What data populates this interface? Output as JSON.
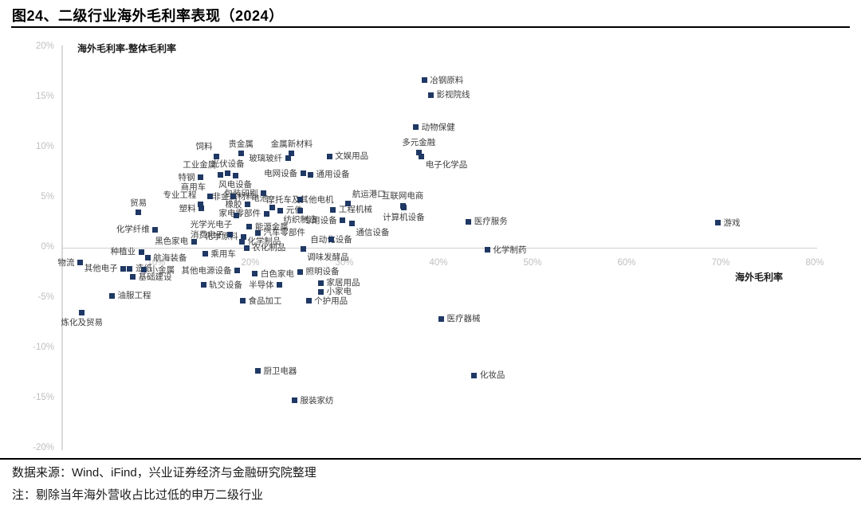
{
  "title": "图24、二级行业海外毛利率表现（2024）",
  "footer": {
    "source": "数据来源：Wind、iFind，兴业证券经济与金融研究院整理",
    "note": "注：剔除当年海外营收占比过低的申万二级行业"
  },
  "chart_data": {
    "type": "scatter",
    "title": "图24、二级行业海外毛利率表现（2024）",
    "xlabel": "海外毛利率",
    "ylabel": "海外毛利率-整体毛利率",
    "xlim": [
      0,
      80
    ],
    "ylim": [
      -20,
      20
    ],
    "grid": false,
    "legend": "none",
    "marker_color": "#1f3864",
    "tick_color": "#bfbfbf",
    "x_ticks": [
      {
        "value": 10,
        "label": "10%"
      },
      {
        "value": 20,
        "label": "20%"
      },
      {
        "value": 30,
        "label": "30%"
      },
      {
        "value": 40,
        "label": "40%"
      },
      {
        "value": 50,
        "label": "50%"
      },
      {
        "value": 60,
        "label": "60%"
      },
      {
        "value": 70,
        "label": "70%"
      },
      {
        "value": 80,
        "label": "80%"
      }
    ],
    "y_ticks": [
      {
        "value": 20,
        "label": "20%"
      },
      {
        "value": 15,
        "label": "15%"
      },
      {
        "value": 10,
        "label": "10%"
      },
      {
        "value": 5,
        "label": "5%"
      },
      {
        "value": 0,
        "label": "0%"
      },
      {
        "value": -5,
        "label": "-5%"
      },
      {
        "value": -10,
        "label": "-10%"
      },
      {
        "value": -15,
        "label": "-15%"
      },
      {
        "value": -20,
        "label": "-20%"
      }
    ],
    "points": [
      {
        "label": "冶钢原料",
        "x": 38.5,
        "y": 16.7,
        "lp": "r"
      },
      {
        "label": "影视院线",
        "x": 39.2,
        "y": 15.2,
        "lp": "r"
      },
      {
        "label": "动物保健",
        "x": 37.6,
        "y": 12.0,
        "lp": "r"
      },
      {
        "label": "多元金融",
        "x": 37.9,
        "y": 9.5,
        "lp": "a"
      },
      {
        "label": "电子化学品",
        "x": 38.2,
        "y": 9.1,
        "lp": "br"
      },
      {
        "label": "文娱用品",
        "x": 28.4,
        "y": 9.1,
        "lp": "r"
      },
      {
        "label": "贵金属",
        "x": 19.0,
        "y": 9.4,
        "lp": "a"
      },
      {
        "label": "金属新材料",
        "x": 24.4,
        "y": 9.4,
        "lp": "a"
      },
      {
        "label": "玻璃玻纤",
        "x": 24.0,
        "y": 8.9,
        "lp": "l"
      },
      {
        "label": "饲料",
        "x": 16.4,
        "y": 9.1,
        "lp": "al"
      },
      {
        "label": "光伏设备",
        "x": 17.6,
        "y": 7.4,
        "lp": "a"
      },
      {
        "label": "工业金属",
        "x": 16.8,
        "y": 7.3,
        "lp": "al"
      },
      {
        "label": "风电设备",
        "x": 18.4,
        "y": 7.2,
        "lp": "b"
      },
      {
        "label": "特钢",
        "x": 14.7,
        "y": 7.0,
        "lp": "l"
      },
      {
        "label": "商用车",
        "x": 15.7,
        "y": 5.1,
        "lp": "al"
      },
      {
        "label": "非金属材料",
        "x": 18.2,
        "y": 5.1,
        "lp": "c"
      },
      {
        "label": "橡胶",
        "x": 19.7,
        "y": 4.3,
        "lp": "l"
      },
      {
        "label": "塑料",
        "x": 14.8,
        "y": 3.9,
        "lp": "l"
      },
      {
        "label": "贸易",
        "x": 8.1,
        "y": 3.5,
        "lp": "a"
      },
      {
        "label": "专业工程",
        "x": 14.7,
        "y": 4.3,
        "lp": "al"
      },
      {
        "label": "电网设备",
        "x": 25.6,
        "y": 7.4,
        "lp": "l"
      },
      {
        "label": "通用设备",
        "x": 26.4,
        "y": 7.3,
        "lp": "r"
      },
      {
        "label": "包装印刷",
        "x": 21.4,
        "y": 5.4,
        "lp": "l"
      },
      {
        "label": "电池",
        "x": 22.3,
        "y": 4.0,
        "lp": "al"
      },
      {
        "label": "元件",
        "x": 23.2,
        "y": 3.7,
        "lp": "r"
      },
      {
        "label": "摩托车及其他电机",
        "x": 25.3,
        "y": 4.8,
        "lp": "c"
      },
      {
        "label": "工程机械",
        "x": 28.8,
        "y": 3.8,
        "lp": "r"
      },
      {
        "label": "航运港口",
        "x": 30.4,
        "y": 4.4,
        "lp": "ar"
      },
      {
        "label": "互联网电商",
        "x": 36.2,
        "y": 4.2,
        "lp": "a"
      },
      {
        "label": "计算机设备",
        "x": 36.3,
        "y": 4.0,
        "lp": "b"
      },
      {
        "label": "专用设备",
        "x": 29.8,
        "y": 2.7,
        "lp": "l"
      },
      {
        "label": "通信设备",
        "x": 30.8,
        "y": 2.4,
        "lp": "br"
      },
      {
        "label": "纺织制造",
        "x": 25.3,
        "y": 3.7,
        "lp": "b"
      },
      {
        "label": "家电零部件",
        "x": 21.7,
        "y": 3.4,
        "lp": "l"
      },
      {
        "label": "光学光电子",
        "x": 18.5,
        "y": 3.2,
        "lp": "bl"
      },
      {
        "label": "能源金属",
        "x": 19.9,
        "y": 2.1,
        "lp": "r"
      },
      {
        "label": "汽车零部件",
        "x": 20.8,
        "y": 1.5,
        "lp": "r"
      },
      {
        "label": "消费电子",
        "x": 17.8,
        "y": 1.3,
        "lp": "l"
      },
      {
        "label": "化学原料",
        "x": 19.3,
        "y": 1.1,
        "lp": "l"
      },
      {
        "label": "化学制品",
        "x": 19.1,
        "y": 0.6,
        "lp": "r"
      },
      {
        "label": "农化制品",
        "x": 19.6,
        "y": 0.0,
        "lp": "r"
      },
      {
        "label": "自动化设备",
        "x": 28.6,
        "y": 0.8,
        "lp": "c"
      },
      {
        "label": "调味发酵品",
        "x": 25.6,
        "y": -0.1,
        "lp": "br"
      },
      {
        "label": "医疗服务",
        "x": 43.2,
        "y": 2.6,
        "lp": "r"
      },
      {
        "label": "游戏",
        "x": 69.7,
        "y": 2.5,
        "lp": "r"
      },
      {
        "label": "化学制药",
        "x": 45.2,
        "y": -0.2,
        "lp": "r"
      },
      {
        "label": "化学纤维",
        "x": 9.9,
        "y": 1.8,
        "lp": "l"
      },
      {
        "label": "黑色家电",
        "x": 14.0,
        "y": 0.6,
        "lp": "l"
      },
      {
        "label": "乘用车",
        "x": 15.2,
        "y": -0.6,
        "lp": "r"
      },
      {
        "label": "种植业",
        "x": 8.4,
        "y": -0.4,
        "lp": "l"
      },
      {
        "label": "航海装备",
        "x": 9.1,
        "y": -1.0,
        "lp": "r"
      },
      {
        "label": "物流",
        "x": 1.9,
        "y": -1.5,
        "lp": "l"
      },
      {
        "label": "其他电子",
        "x": 6.5,
        "y": -2.1,
        "lp": "l"
      },
      {
        "label": "造纸",
        "x": 7.2,
        "y": -2.1,
        "lp": "r"
      },
      {
        "label": "小金属",
        "x": 8.7,
        "y": -2.2,
        "lp": "r"
      },
      {
        "label": "基础建设",
        "x": 7.5,
        "y": -2.9,
        "lp": "r"
      },
      {
        "label": "油服工程",
        "x": 5.3,
        "y": -4.8,
        "lp": "r"
      },
      {
        "label": "炼化及贸易",
        "x": 2.1,
        "y": -6.5,
        "lp": "b"
      },
      {
        "label": "其他电源设备",
        "x": 18.6,
        "y": -2.3,
        "lp": "l"
      },
      {
        "label": "白色家电",
        "x": 20.5,
        "y": -2.6,
        "lp": "r"
      },
      {
        "label": "照明设备",
        "x": 25.3,
        "y": -2.4,
        "lp": "r"
      },
      {
        "label": "轨交设备",
        "x": 15.0,
        "y": -3.7,
        "lp": "r"
      },
      {
        "label": "半导体",
        "x": 23.1,
        "y": -3.7,
        "lp": "l"
      },
      {
        "label": "食品加工",
        "x": 19.2,
        "y": -5.3,
        "lp": "r"
      },
      {
        "label": "个护用品",
        "x": 26.2,
        "y": -5.3,
        "lp": "r"
      },
      {
        "label": "小家电",
        "x": 27.5,
        "y": -4.4,
        "lp": "r"
      },
      {
        "label": "家居用品",
        "x": 27.5,
        "y": -3.5,
        "lp": "r"
      },
      {
        "label": "医疗器械",
        "x": 40.3,
        "y": -7.1,
        "lp": "r"
      },
      {
        "label": "厨卫电器",
        "x": 20.8,
        "y": -12.3,
        "lp": "r"
      },
      {
        "label": "化妆品",
        "x": 43.8,
        "y": -12.7,
        "lp": "r"
      },
      {
        "label": "服装家纺",
        "x": 24.7,
        "y": -15.2,
        "lp": "r"
      }
    ]
  }
}
